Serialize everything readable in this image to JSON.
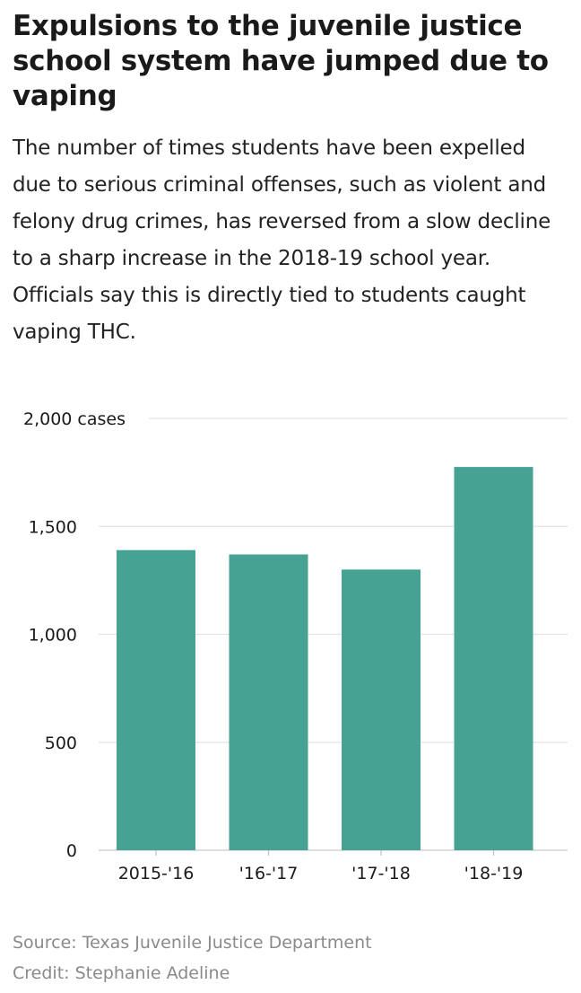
{
  "header": {
    "title": "Expulsions to the juvenile justice school system have jumped due to vaping",
    "subtitle": "The number of times students have been expelled due to serious criminal offenses, such as violent and felony drug crimes, has reversed from a slow decline to a sharp increase in the 2018-19 school year. Officials say this is directly tied to students caught vaping THC."
  },
  "chart_data": {
    "type": "bar",
    "categories": [
      "2015-'16",
      "'16-'17",
      "'17-'18",
      "'18-'19"
    ],
    "values": [
      1390,
      1370,
      1300,
      1775
    ],
    "ylim": [
      0,
      2000
    ],
    "yticks": [
      0,
      500,
      1000,
      1500,
      2000
    ],
    "ytick_labels": [
      "0",
      "500",
      "1,000",
      "1,500",
      "2,000 cases"
    ],
    "grid": true,
    "bar_color": "#46a394",
    "grid_color": "#e3e3e3"
  },
  "footer": {
    "source": "Source: Texas Juvenile Justice Department",
    "credit": "Credit: Stephanie Adeline"
  }
}
